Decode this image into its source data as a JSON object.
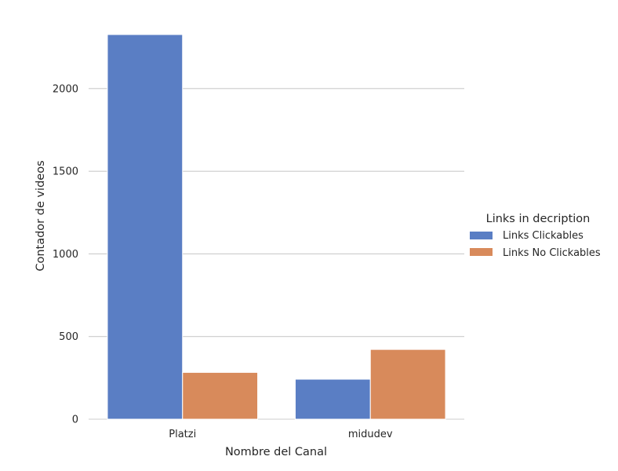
{
  "chart_data": {
    "type": "bar",
    "categories": [
      "Platzi",
      "midudev"
    ],
    "series": [
      {
        "name": "Links Clickables",
        "values": [
          2327,
          242
        ],
        "color": "#5a7ec4"
      },
      {
        "name": "Links No Clickables",
        "values": [
          283,
          422
        ],
        "color": "#d88a5b"
      }
    ],
    "xlabel": "Nombre del Canal",
    "ylabel": "Contador de videos",
    "ylim": [
      0,
      2327
    ],
    "yticks": [
      0,
      500,
      1000,
      1500,
      2000
    ],
    "ytick_labels": [
      "0",
      "500",
      "1000",
      "1500",
      "2000"
    ],
    "grid": true,
    "grid_color": "#cccccc",
    "legend": {
      "title": "Links in decription",
      "placement": "right"
    }
  }
}
